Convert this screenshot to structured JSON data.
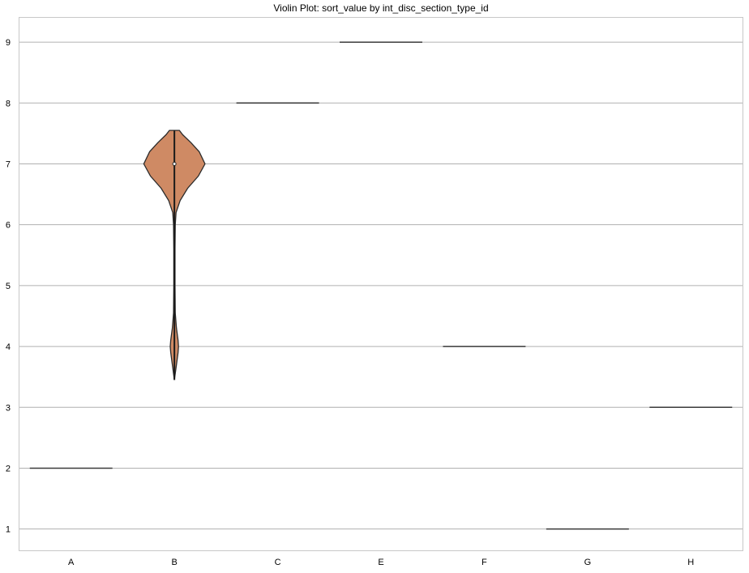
{
  "chart_data": {
    "type": "violin",
    "title": "Violin Plot: sort_value by int_disc_section_type_id",
    "xlabel": "",
    "ylabel": "",
    "categories": [
      "A",
      "B",
      "C",
      "E",
      "F",
      "G",
      "H"
    ],
    "yticks": [
      "1",
      "2",
      "3",
      "4",
      "5",
      "6",
      "7",
      "8",
      "9"
    ],
    "ylim": [
      0.65,
      9.4
    ],
    "grid": "horizontal",
    "fill_color": "#cf8a64",
    "groups": [
      {
        "category": "A",
        "values": [
          2
        ],
        "kind": "single-value"
      },
      {
        "category": "B",
        "values": [
          7,
          7,
          7,
          7,
          7,
          7,
          7,
          7,
          7,
          4
        ],
        "kind": "distribution",
        "min": 3.45,
        "max": 7.55,
        "median": 7,
        "density_profile": [
          [
            3.45,
            0.0
          ],
          [
            3.7,
            0.05
          ],
          [
            3.9,
            0.09
          ],
          [
            4.0,
            0.1
          ],
          [
            4.1,
            0.09
          ],
          [
            4.3,
            0.05
          ],
          [
            4.55,
            0.02
          ],
          [
            5.0,
            0.015
          ],
          [
            5.6,
            0.015
          ],
          [
            6.0,
            0.02
          ],
          [
            6.2,
            0.04
          ],
          [
            6.4,
            0.14
          ],
          [
            6.6,
            0.32
          ],
          [
            6.8,
            0.58
          ],
          [
            7.0,
            0.74
          ],
          [
            7.2,
            0.6
          ],
          [
            7.35,
            0.4
          ],
          [
            7.48,
            0.2
          ],
          [
            7.55,
            0.12
          ]
        ]
      },
      {
        "category": "C",
        "values": [
          8
        ],
        "kind": "single-value"
      },
      {
        "category": "E",
        "values": [
          9
        ],
        "kind": "single-value"
      },
      {
        "category": "F",
        "values": [
          4
        ],
        "kind": "single-value"
      },
      {
        "category": "G",
        "values": [
          1
        ],
        "kind": "single-value"
      },
      {
        "category": "H",
        "values": [
          3
        ],
        "kind": "single-value"
      }
    ]
  }
}
